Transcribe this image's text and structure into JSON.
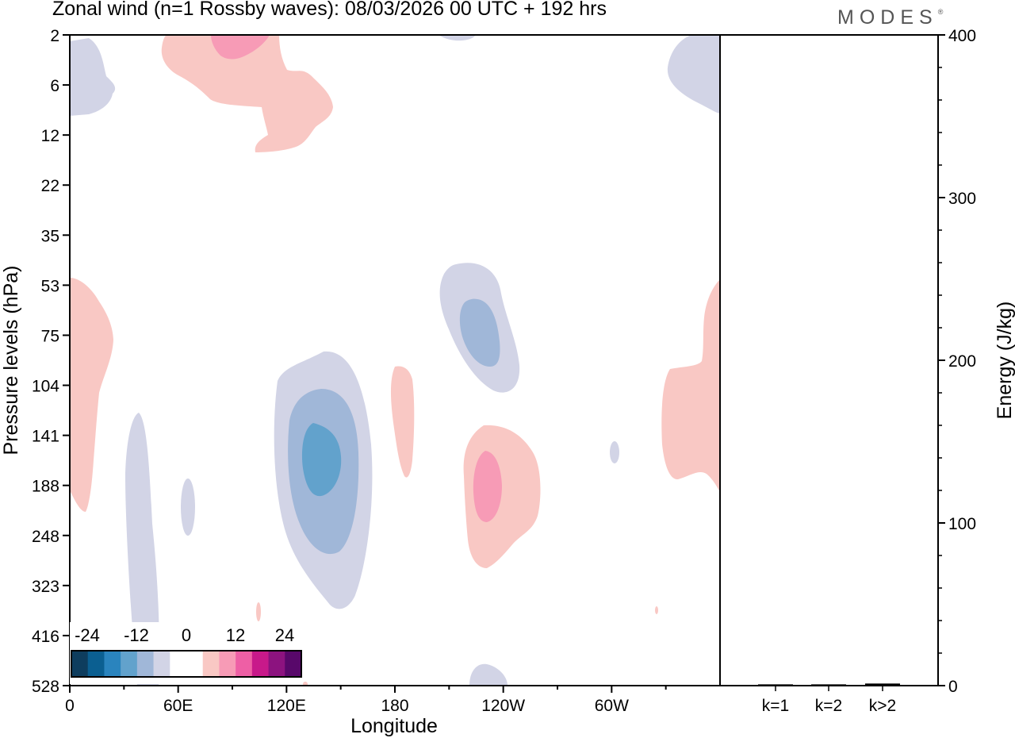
{
  "title": "Zonal wind (n=1 Rossby waves):  08/03/2026  00 UTC  + 192 hrs",
  "logo": "MODES",
  "logo_mark": "®",
  "chart_data": [
    {
      "type": "heatmap",
      "title": "Zonal wind (n=1 Rossby waves):  08/03/2026  00 UTC  + 192 hrs",
      "xlabel": "Longitude",
      "ylabel": "Pressure levels (hPa)",
      "x_ticks": [
        "0",
        "60E",
        "120E",
        "180",
        "120W",
        "60W"
      ],
      "x_tick_values": [
        0,
        60,
        120,
        180,
        240,
        300
      ],
      "xlim": [
        0,
        360
      ],
      "y_ticks": [
        "2",
        "6",
        "12",
        "22",
        "35",
        "53",
        "75",
        "104",
        "141",
        "188",
        "248",
        "323",
        "416",
        "528"
      ],
      "y_scale": "ordinal pressure levels (top = 2 hPa, bottom = 528 hPa)",
      "contour_levels": [
        -24,
        -21,
        -18,
        -15,
        -12,
        -9,
        -6,
        -3,
        3,
        6,
        9,
        12,
        15,
        18,
        21,
        24
      ],
      "colorbar_labels": [
        "-24",
        "-12",
        "0",
        "12",
        "24"
      ],
      "colorbar_colors": [
        "#0e3d5e",
        "#0b5f91",
        "#2a84be",
        "#62a2cc",
        "#a0b7d8",
        "#d2d4e6",
        "#ffffff",
        "#ffffff",
        "#f9c8c4",
        "#f79bb6",
        "#ee5fa5",
        "#c8198a",
        "#8c137f",
        "#58086a"
      ],
      "features": [
        {
          "sign": "negative",
          "lon": 138,
          "level": "141",
          "min": -10,
          "desc": "strongest easterly anomaly, about 120E-150E, 104-248 hPa"
        },
        {
          "sign": "negative",
          "lon": 228,
          "level": "75",
          "min": -7,
          "desc": "easterly anomaly near 130W, 53-104 hPa"
        },
        {
          "sign": "positive",
          "lon": 230,
          "level": "188",
          "max": 7,
          "desc": "westerly anomaly near 130W, 141-248 hPa"
        },
        {
          "sign": "positive",
          "lon": 90,
          "level": "2",
          "max": 7,
          "desc": "westerly anomaly near 90E, 2-12 hPa"
        },
        {
          "sign": "positive",
          "lon": 355,
          "level": "141",
          "max": 5,
          "desc": "westerly anomaly at the eastern edge, 53-188 hPa"
        },
        {
          "sign": "positive",
          "lon": 12,
          "level": "75",
          "max": 4,
          "desc": "westerly anomaly near 10E, 53-188 hPa"
        },
        {
          "sign": "negative",
          "lon": 40,
          "level": "416",
          "min": -4,
          "desc": "weak easterly near 40E, 141-528 hPa"
        },
        {
          "sign": "negative",
          "lon": 350,
          "level": "6",
          "min": -4,
          "desc": "weak easterly near 10W, 2-12 hPa"
        }
      ]
    },
    {
      "type": "bar",
      "title": "",
      "categories": [
        "k=1",
        "k=2",
        "k>2"
      ],
      "values": [
        0.3,
        0.3,
        0.8
      ],
      "ylabel": "Energy (J/kg)",
      "ylim": [
        0,
        400
      ],
      "y_ticks": [
        "0",
        "100",
        "200",
        "300",
        "400"
      ],
      "y_tick_values": [
        0,
        100,
        200,
        300,
        400
      ]
    }
  ]
}
